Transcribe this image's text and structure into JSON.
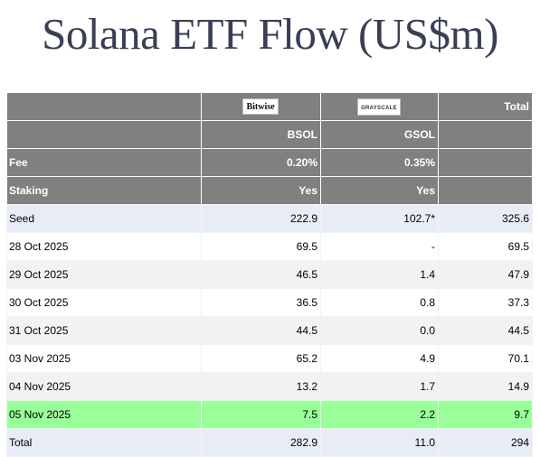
{
  "title": "Solana ETF Flow (US$m)",
  "header": {
    "issuers": {
      "bitwise_logo": "Bitwise",
      "grayscale_logo": "GRAYSCALE",
      "total": "Total"
    },
    "tickers": {
      "bsol": "BSOL",
      "gsol": "GSOL"
    },
    "fee": {
      "label": "Fee",
      "bsol": "0.20%",
      "gsol": "0.35%"
    },
    "staking": {
      "label": "Staking",
      "bsol": "Yes",
      "gsol": "Yes"
    }
  },
  "rows": [
    {
      "date": "Seed",
      "bsol": "222.9",
      "gsol": "102.7*",
      "total": "325.6"
    },
    {
      "date": "28 Oct 2025",
      "bsol": "69.5",
      "gsol": "-",
      "total": "69.5"
    },
    {
      "date": "29 Oct 2025",
      "bsol": "46.5",
      "gsol": "1.4",
      "total": "47.9"
    },
    {
      "date": "30 Oct 2025",
      "bsol": "36.5",
      "gsol": "0.8",
      "total": "37.3"
    },
    {
      "date": "31 Oct 2025",
      "bsol": "44.5",
      "gsol": "0.0",
      "total": "44.5"
    },
    {
      "date": "03 Nov 2025",
      "bsol": "65.2",
      "gsol": "4.9",
      "total": "70.1"
    },
    {
      "date": "04 Nov 2025",
      "bsol": "13.2",
      "gsol": "1.7",
      "total": "14.9"
    },
    {
      "date": "05 Nov 2025",
      "bsol": "7.5",
      "gsol": "2.2",
      "total": "9.7"
    }
  ],
  "totals": {
    "label": "Total",
    "bsol": "282.9",
    "gsol": "11.0",
    "total": "294"
  },
  "colors": {
    "header_bg": "#808080",
    "seed_bg": "#e8ecf7",
    "alt_row_bg": "#f2f2f2",
    "highlight_bg": "#99ff99",
    "title_color": "#3a3f55"
  }
}
